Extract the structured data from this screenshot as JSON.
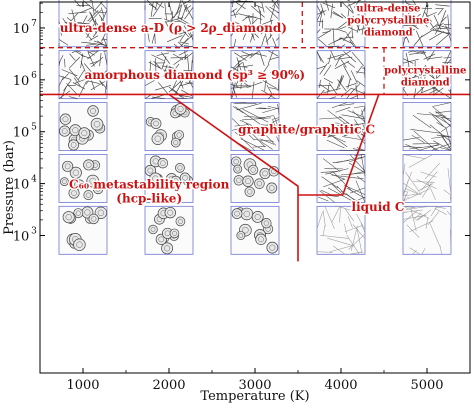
{
  "chart_data": {
    "type": "phase-diagram",
    "xlabel": "Temperature (K)",
    "ylabel": "Pressure (bar)",
    "xlim": [
      500,
      5500
    ],
    "ylim": [
      0.35,
      7.5
    ],
    "y_scale": "log10",
    "x_ticks": [
      {
        "value": 1000,
        "label": "1000"
      },
      {
        "value": 2000,
        "label": "2000"
      },
      {
        "value": 3000,
        "label": "3000"
      },
      {
        "value": 4000,
        "label": "4000"
      },
      {
        "value": 5000,
        "label": "5000"
      }
    ],
    "y_ticks": [
      {
        "exp": 3,
        "base": "10",
        "power": "3"
      },
      {
        "exp": 4,
        "base": "10",
        "power": "4"
      },
      {
        "exp": 5,
        "base": "10",
        "power": "5"
      },
      {
        "exp": 6,
        "base": "10",
        "power": "6"
      },
      {
        "exp": 7,
        "base": "10",
        "power": "7"
      }
    ],
    "sample_temperatures": [
      1000,
      2000,
      3000,
      4000,
      5000
    ],
    "sample_log_pressures": [
      7.1,
      6.1,
      5.1,
      4.1,
      3.1
    ],
    "samples": [
      [
        {
          "T": 1000,
          "logP": 7.1,
          "structure": "dense"
        },
        {
          "T": 2000,
          "logP": 7.1,
          "structure": "dense"
        },
        {
          "T": 3000,
          "logP": 7.1,
          "structure": "dense"
        },
        {
          "T": 4000,
          "logP": 7.1,
          "structure": "dense"
        },
        {
          "T": 5000,
          "logP": 7.1,
          "structure": "dense"
        }
      ],
      [
        {
          "T": 1000,
          "logP": 6.1,
          "structure": "dense"
        },
        {
          "T": 2000,
          "logP": 6.1,
          "structure": "dense"
        },
        {
          "T": 3000,
          "logP": 6.1,
          "structure": "dense"
        },
        {
          "T": 4000,
          "logP": 6.1,
          "structure": "dense"
        },
        {
          "T": 5000,
          "logP": 6.1,
          "structure": "dense"
        }
      ],
      [
        {
          "T": 1000,
          "logP": 5.1,
          "structure": "fullerene"
        },
        {
          "T": 2000,
          "logP": 5.1,
          "structure": "fullerene"
        },
        {
          "T": 3000,
          "logP": 5.1,
          "structure": "graphitic"
        },
        {
          "T": 4000,
          "logP": 5.1,
          "structure": "graphitic"
        },
        {
          "T": 5000,
          "logP": 5.1,
          "structure": "graphitic"
        }
      ],
      [
        {
          "T": 1000,
          "logP": 4.1,
          "structure": "fullerene"
        },
        {
          "T": 2000,
          "logP": 4.1,
          "structure": "fullerene"
        },
        {
          "T": 3000,
          "logP": 4.1,
          "structure": "fullerene"
        },
        {
          "T": 4000,
          "logP": 4.1,
          "structure": "graphitic"
        },
        {
          "T": 5000,
          "logP": 4.1,
          "structure": "liquid"
        }
      ],
      [
        {
          "T": 1000,
          "logP": 3.1,
          "structure": "fullerene"
        },
        {
          "T": 2000,
          "logP": 3.1,
          "structure": "fullerene"
        },
        {
          "T": 3000,
          "logP": 3.1,
          "structure": "fullerene"
        },
        {
          "T": 4000,
          "logP": 3.1,
          "structure": "liquid"
        },
        {
          "T": 5000,
          "logP": 3.1,
          "structure": "liquid"
        }
      ]
    ],
    "boundaries": [
      {
        "name": "diamond-graphite",
        "style": "solid",
        "points": [
          [
            500,
            5.72
          ],
          [
            5500,
            5.72
          ]
        ]
      },
      {
        "name": "ultra-dense-amorphous",
        "style": "dashed",
        "points": [
          [
            500,
            6.62
          ],
          [
            5500,
            6.62
          ]
        ]
      },
      {
        "name": "ultra-dense-polycrystalline",
        "style": "dashed",
        "points": [
          [
            3550,
            7.5
          ],
          [
            3550,
            6.62
          ]
        ]
      },
      {
        "name": "amorphous-polycrystalline",
        "style": "dashed",
        "points": [
          [
            4500,
            6.62
          ],
          [
            4500,
            5.72
          ]
        ]
      },
      {
        "name": "fullerene-graphitic",
        "style": "solid",
        "points": [
          [
            2000,
            5.72
          ],
          [
            3500,
            3.95
          ],
          [
            3500,
            2.5
          ]
        ]
      },
      {
        "name": "graphitic-liquid",
        "style": "solid",
        "points": [
          [
            4440,
            5.72
          ],
          [
            4020,
            3.78
          ],
          [
            3500,
            3.78
          ]
        ]
      }
    ],
    "colors": {
      "boundary": "#d01010",
      "label": "#d01010",
      "sample_frame": "#6e79d6",
      "atoms": "#444444",
      "liquid_atoms": "#9a9a9a"
    },
    "region_labels": [
      {
        "id": "ultra-dense",
        "lines": [
          "ultra-dense a-D (ρ > 2ρ_diamond)"
        ],
        "T": 2050,
        "logP": 7.0,
        "size": "large"
      },
      {
        "id": "ultra-dense-polycrystalline",
        "lines": [
          "ultra-dense",
          "polycrystalline",
          "diamond"
        ],
        "T": 4550,
        "logP": 7.15,
        "size": "small"
      },
      {
        "id": "amorphous-diamond",
        "lines": [
          "amorphous diamond (sp³ ≥ 90%)"
        ],
        "T": 2300,
        "logP": 6.1,
        "size": "large"
      },
      {
        "id": "polycrystalline-diamond",
        "lines": [
          "polycrystalline",
          "diamond"
        ],
        "T": 4980,
        "logP": 6.07,
        "size": "small"
      },
      {
        "id": "graphitic",
        "lines": [
          "graphite/graphitic C"
        ],
        "T": 3600,
        "logP": 5.05,
        "size": "large"
      },
      {
        "id": "c60",
        "lines": [
          "C₆₀ metastability region",
          "(hcp-like)"
        ],
        "T": 1770,
        "logP": 3.85,
        "size": "large"
      },
      {
        "id": "liquid",
        "lines": [
          "liquid C"
        ],
        "T": 4430,
        "logP": 3.55,
        "size": "large"
      }
    ]
  }
}
